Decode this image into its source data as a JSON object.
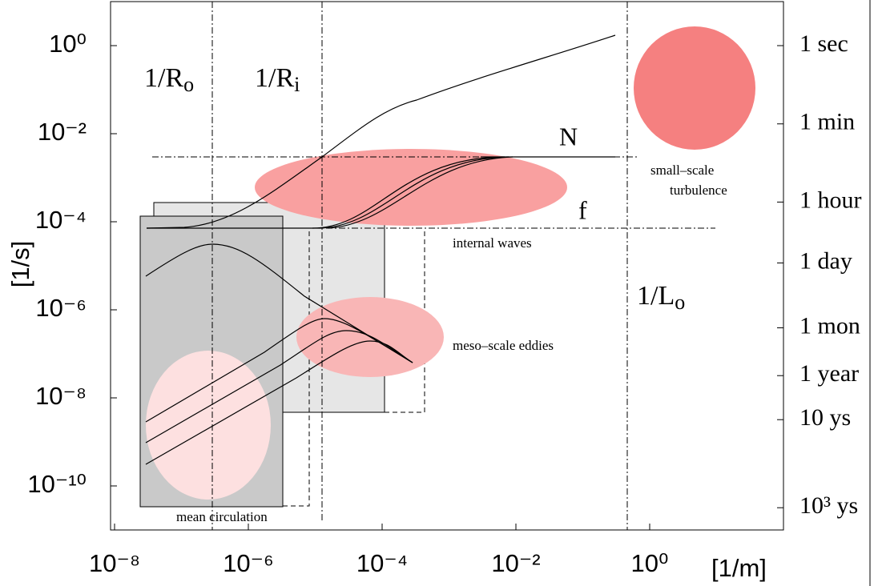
{
  "chart_data": {
    "type": "line",
    "log_x": true,
    "log_y": true,
    "xlabel": "[1/m]",
    "ylabel": "[1/s]",
    "xlim": [
      1e-08,
      100
    ],
    "ylim": [
      1e-11,
      10
    ],
    "xticks": [
      {
        "value": 1e-08,
        "label": "10⁻⁸"
      },
      {
        "value": 1e-06,
        "label": "10⁻⁶"
      },
      {
        "value": 0.0001,
        "label": "10⁻⁴"
      },
      {
        "value": 0.01,
        "label": "10⁻²"
      },
      {
        "value": 1,
        "label": "10⁰"
      }
    ],
    "yticks": [
      {
        "value": 1,
        "label": "10⁰"
      },
      {
        "value": 0.01,
        "label": "10⁻²"
      },
      {
        "value": 0.0001,
        "label": "10⁻⁴"
      },
      {
        "value": 1e-06,
        "label": "10⁻⁶"
      },
      {
        "value": 1e-08,
        "label": "10⁻⁸"
      },
      {
        "value": 1e-10,
        "label": "10⁻¹⁰"
      }
    ],
    "y2ticks": [
      {
        "value": 1,
        "label": "1 sec"
      },
      {
        "value": 0.0167,
        "label": "1 min"
      },
      {
        "value": 0.00028,
        "label": "1 hour"
      },
      {
        "value": 1.16e-05,
        "label": "1 day"
      },
      {
        "value": 3.9e-07,
        "label": "1 mon"
      },
      {
        "value": 3.2e-08,
        "label": "1 year"
      },
      {
        "value": 3.2e-09,
        "label": "10 ys"
      },
      {
        "value": 3.2e-11,
        "label": "10³ ys"
      }
    ],
    "scale_lines": [
      {
        "text": "1/R",
        "sub": "o"
      },
      {
        "text": "1/R",
        "sub": "i"
      },
      {
        "text": "1/L",
        "sub": "o"
      }
    ],
    "annotations": [
      "N",
      "f",
      "small–scale",
      "turbulence",
      "internal waves",
      "meso–scale eddies",
      "mean circulation"
    ]
  }
}
